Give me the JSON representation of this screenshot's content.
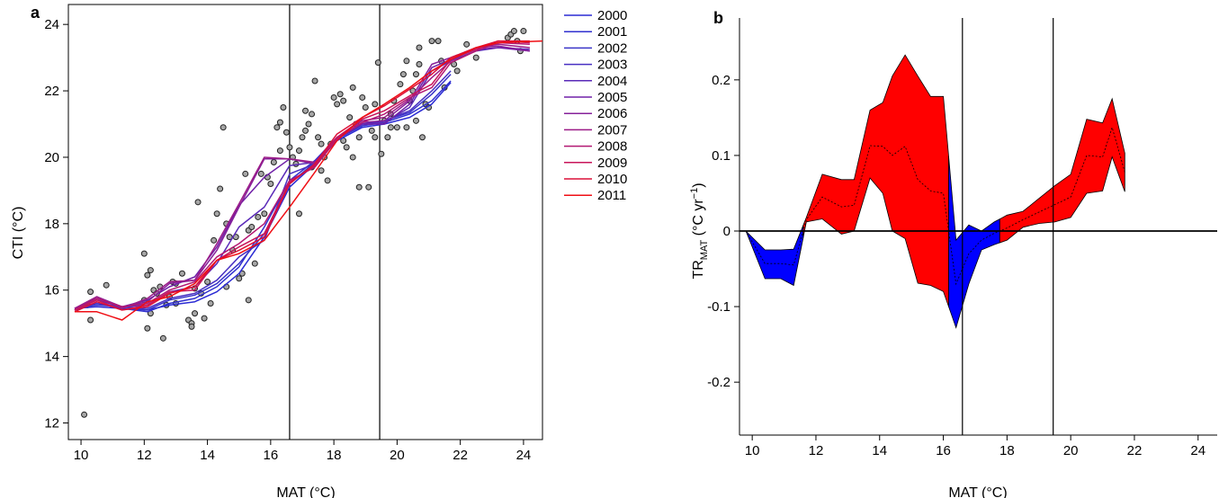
{
  "chart_data": [
    {
      "panel_label": "a",
      "type": "line",
      "xlabel": "MAT (°C)",
      "ylabel": "CTI (°C)",
      "xlim": [
        9.6,
        24.6
      ],
      "ylim": [
        11.5,
        24.6
      ],
      "xticks": [
        10,
        12,
        14,
        16,
        18,
        20,
        22,
        24
      ],
      "yticks": [
        12,
        14,
        16,
        18,
        20,
        22,
        24
      ],
      "vlines": [
        16.6,
        19.45
      ],
      "grid": false,
      "legend_position": "right",
      "series": [
        {
          "name": "2000",
          "color": "#2b2bd4",
          "x": [
            9.8,
            10.5,
            11.3,
            12.1,
            12.8,
            13.6,
            14.3,
            15.0,
            15.8,
            16.6,
            17.4,
            18.1,
            18.9,
            19.6,
            20.4,
            21.1,
            21.7
          ],
          "y": [
            15.45,
            15.5,
            15.45,
            15.4,
            15.55,
            15.65,
            15.95,
            16.5,
            17.6,
            19.1,
            19.8,
            20.5,
            20.9,
            21.0,
            21.2,
            21.6,
            22.25
          ]
        },
        {
          "name": "2001",
          "color": "#3030cf",
          "x": [
            9.8,
            10.5,
            11.3,
            12.1,
            12.8,
            13.6,
            14.3,
            15.0,
            15.8,
            16.6,
            17.4,
            18.1,
            18.9,
            19.6,
            20.4,
            21.1,
            21.7
          ],
          "y": [
            15.4,
            15.6,
            15.45,
            15.35,
            15.6,
            15.75,
            16.1,
            16.7,
            17.9,
            19.3,
            19.9,
            20.6,
            20.95,
            21.05,
            21.3,
            21.7,
            22.3
          ]
        },
        {
          "name": "2002",
          "color": "#3a34c8",
          "x": [
            9.8,
            10.5,
            11.3,
            12.1,
            12.8,
            13.6,
            14.3,
            15.0,
            15.8,
            16.6,
            17.4,
            18.1,
            18.9,
            19.6,
            20.4,
            21.1,
            21.7
          ],
          "y": [
            15.45,
            15.55,
            15.5,
            15.4,
            15.7,
            15.85,
            16.2,
            16.8,
            17.7,
            19.2,
            19.85,
            20.55,
            20.95,
            21.1,
            21.35,
            21.9,
            22.5
          ]
        },
        {
          "name": "2003",
          "color": "#4830c2",
          "x": [
            9.8,
            10.5,
            11.3,
            12.1,
            12.8,
            13.6,
            14.3,
            15.0,
            15.8,
            16.6,
            17.4,
            18.1,
            18.9,
            19.6,
            20.4,
            21.1,
            21.7
          ],
          "y": [
            15.45,
            15.6,
            15.5,
            15.45,
            15.75,
            15.9,
            16.3,
            17.0,
            17.5,
            19.5,
            19.8,
            20.6,
            21.0,
            21.1,
            21.4,
            22.0,
            22.6
          ]
        },
        {
          "name": "2004",
          "color": "#5a2ab8",
          "x": [
            9.8,
            10.5,
            11.3,
            12.1,
            12.8,
            13.6,
            14.3,
            15.0,
            15.8,
            16.6,
            17.4,
            18.1,
            18.9,
            19.6,
            20.4,
            21.1,
            21.7,
            22.5,
            23.2,
            24.2
          ],
          "y": [
            15.4,
            15.7,
            15.5,
            15.55,
            15.95,
            16.1,
            16.8,
            17.9,
            18.5,
            19.75,
            19.85,
            20.55,
            21.0,
            21.05,
            21.5,
            22.6,
            22.9,
            23.2,
            23.3,
            23.25
          ]
        },
        {
          "name": "2005",
          "color": "#7020a8",
          "x": [
            9.8,
            10.5,
            11.3,
            12.1,
            12.8,
            13.6,
            14.3,
            15.0,
            15.8,
            16.6,
            17.4,
            18.1,
            18.9,
            19.6,
            20.4,
            21.1,
            21.7,
            22.5,
            23.2,
            24.2
          ],
          "y": [
            15.45,
            15.75,
            15.5,
            15.7,
            16.1,
            16.4,
            17.3,
            18.55,
            19.4,
            19.95,
            19.8,
            20.6,
            21.0,
            21.0,
            21.6,
            22.7,
            22.95,
            23.25,
            23.3,
            23.2
          ]
        },
        {
          "name": "2006",
          "color": "#86209a",
          "x": [
            9.8,
            10.5,
            11.3,
            12.1,
            12.8,
            13.6,
            14.3,
            15.0,
            15.8,
            16.6,
            17.4,
            18.1,
            18.9,
            19.6,
            20.4,
            21.1,
            21.7,
            22.5,
            23.2,
            24.2
          ],
          "y": [
            15.4,
            15.8,
            15.5,
            15.65,
            16.2,
            16.3,
            17.2,
            18.5,
            19.95,
            19.95,
            19.8,
            20.55,
            21.05,
            21.1,
            21.7,
            22.8,
            23.0,
            23.3,
            23.35,
            23.2
          ]
        },
        {
          "name": "2007",
          "color": "#9c1c88",
          "x": [
            9.8,
            10.5,
            11.3,
            12.1,
            12.8,
            13.6,
            14.3,
            15.0,
            15.8,
            16.6,
            17.4,
            18.1,
            18.9,
            19.6,
            20.4,
            21.1,
            21.7,
            22.5,
            23.2,
            24.2
          ],
          "y": [
            15.45,
            15.8,
            15.45,
            15.75,
            16.25,
            16.3,
            17.4,
            18.6,
            20.0,
            19.95,
            19.85,
            20.6,
            21.1,
            21.2,
            21.75,
            22.4,
            22.9,
            23.3,
            23.4,
            23.3
          ]
        },
        {
          "name": "2008",
          "color": "#b31873",
          "x": [
            9.8,
            10.5,
            11.3,
            12.1,
            12.8,
            13.6,
            14.3,
            15.0,
            15.8,
            16.6,
            17.4,
            18.1,
            18.9,
            19.6,
            20.4,
            21.1,
            21.7,
            22.5,
            23.2,
            24.2
          ],
          "y": [
            15.4,
            15.75,
            15.5,
            15.6,
            16.0,
            16.25,
            17.0,
            17.4,
            18.0,
            19.3,
            19.7,
            20.55,
            21.05,
            21.3,
            21.8,
            22.1,
            22.85,
            23.2,
            23.45,
            23.4
          ]
        },
        {
          "name": "2009",
          "color": "#c8145a",
          "x": [
            9.8,
            10.5,
            11.3,
            12.1,
            12.8,
            13.6,
            14.3,
            15.0,
            15.8,
            16.6,
            17.4,
            18.1,
            18.9,
            19.6,
            20.4,
            21.1,
            21.7,
            22.5,
            23.2,
            24.2
          ],
          "y": [
            15.4,
            15.7,
            15.4,
            15.55,
            15.95,
            16.0,
            16.9,
            17.3,
            17.7,
            19.25,
            19.75,
            20.6,
            21.15,
            21.4,
            21.85,
            22.2,
            22.95,
            23.25,
            23.5,
            23.45
          ]
        },
        {
          "name": "2010",
          "color": "#dc1038",
          "x": [
            9.8,
            10.5,
            11.3,
            12.1,
            12.8,
            13.6,
            14.3,
            15.0,
            15.8,
            16.6,
            17.4,
            18.1,
            18.9,
            19.6,
            20.4,
            21.1,
            21.7,
            22.5,
            23.2,
            24.2
          ],
          "y": [
            15.35,
            15.65,
            15.4,
            15.5,
            15.9,
            16.1,
            16.9,
            17.2,
            17.6,
            19.2,
            19.8,
            20.7,
            21.2,
            21.55,
            22.05,
            22.5,
            23.0,
            23.3,
            23.5,
            23.5
          ]
        },
        {
          "name": "2011",
          "color": "#ef0e14",
          "x": [
            9.8,
            10.5,
            11.3,
            12.1,
            12.8,
            13.6,
            14.3,
            15.0,
            15.8,
            16.6,
            17.4,
            18.1,
            18.9,
            19.6,
            20.4,
            21.1,
            21.7,
            22.5,
            23.2,
            24.6
          ],
          "y": [
            15.35,
            15.35,
            15.1,
            15.65,
            15.8,
            16.2,
            16.9,
            17.1,
            17.5,
            18.5,
            19.55,
            20.5,
            21.2,
            21.6,
            22.1,
            22.6,
            22.95,
            23.3,
            23.45,
            23.5
          ]
        }
      ],
      "scatter": {
        "color": "#a6a6a6",
        "x": [
          10.1,
          10.2,
          10.3,
          10.3,
          10.8,
          12.0,
          12.0,
          12.1,
          12.1,
          12.2,
          12.3,
          12.4,
          12.5,
          12.6,
          12.7,
          12.8,
          12.9,
          13.0,
          13.2,
          13.4,
          13.5,
          13.5,
          13.6,
          13.6,
          13.7,
          13.8,
          13.9,
          14.0,
          14.1,
          14.2,
          14.3,
          14.4,
          14.5,
          14.6,
          14.7,
          14.8,
          14.9,
          15.0,
          15.1,
          15.2,
          15.3,
          15.4,
          15.5,
          15.6,
          15.7,
          15.8,
          15.9,
          16.0,
          16.1,
          16.2,
          16.3,
          16.4,
          16.5,
          16.6,
          16.7,
          16.8,
          16.9,
          17.0,
          17.1,
          17.2,
          17.3,
          17.4,
          17.5,
          17.6,
          17.7,
          17.8,
          17.9,
          18.0,
          18.1,
          18.2,
          18.3,
          18.4,
          18.5,
          18.6,
          18.7,
          18.8,
          18.9,
          19.0,
          19.1,
          19.2,
          19.3,
          19.4,
          19.5,
          19.6,
          19.7,
          19.8,
          19.9,
          20.0,
          20.1,
          20.2,
          20.3,
          20.4,
          20.5,
          20.6,
          20.7,
          20.8,
          20.9,
          21.0,
          21.1,
          21.3,
          21.5,
          21.8,
          22.2,
          22.5,
          23.5,
          23.6,
          23.7,
          23.8,
          23.9,
          24.0,
          12.2,
          13.0,
          14.6,
          15.3,
          16.9,
          17.3,
          17.6,
          18.3,
          18.8,
          19.8,
          20.3,
          20.6,
          21.4,
          16.3,
          17.1,
          18.6,
          19.3,
          20.7,
          21.9
        ],
        "y": [
          12.25,
          15.55,
          15.95,
          15.1,
          16.15,
          17.1,
          15.7,
          14.85,
          16.45,
          15.3,
          16.0,
          15.9,
          16.1,
          14.55,
          15.55,
          15.8,
          16.25,
          15.6,
          16.5,
          15.1,
          15.0,
          14.9,
          16.05,
          15.3,
          18.65,
          15.9,
          15.15,
          16.25,
          15.6,
          17.5,
          18.3,
          19.05,
          20.9,
          18.0,
          17.6,
          17.2,
          17.6,
          16.35,
          16.5,
          19.5,
          17.8,
          17.9,
          16.8,
          18.2,
          19.5,
          18.3,
          19.4,
          19.2,
          19.85,
          20.9,
          21.05,
          21.5,
          20.75,
          20.3,
          20.0,
          19.8,
          20.2,
          20.6,
          20.8,
          21.0,
          21.3,
          22.3,
          20.6,
          19.6,
          20.0,
          19.3,
          20.4,
          21.8,
          21.6,
          21.9,
          21.7,
          20.3,
          21.2,
          20.0,
          21.0,
          20.6,
          21.8,
          21.5,
          19.1,
          20.8,
          20.6,
          22.85,
          20.1,
          21.1,
          20.6,
          20.9,
          21.7,
          20.9,
          22.2,
          22.5,
          22.9,
          21.7,
          22.0,
          22.5,
          23.3,
          20.6,
          21.6,
          21.5,
          23.5,
          23.5,
          22.1,
          22.8,
          23.4,
          23.0,
          23.6,
          23.7,
          23.8,
          23.5,
          23.2,
          23.8,
          16.6,
          16.2,
          16.1,
          15.7,
          18.3,
          19.7,
          20.4,
          20.5,
          19.1,
          21.3,
          20.9,
          21.1,
          22.9,
          20.2,
          21.4,
          22.1,
          21.6,
          22.8,
          22.6
        ]
      }
    },
    {
      "panel_label": "b",
      "type": "area",
      "xlabel": "MAT (°C)",
      "ylabel_main": "TR",
      "ylabel_sub": "MAT",
      "ylabel_units_pre": " (°C yr",
      "ylabel_units_sup": "−1",
      "ylabel_units_post": ")",
      "xlim": [
        9.6,
        24.6
      ],
      "ylim": [
        -0.27,
        0.27
      ],
      "xticks": [
        10,
        12,
        14,
        16,
        18,
        20,
        22,
        24
      ],
      "yticks": [
        -0.2,
        -0.1,
        0,
        0.1,
        0.2
      ],
      "ytick_labels": [
        "-0.2",
        "-0.1",
        "0",
        "0.1",
        "0.2"
      ],
      "vlines": [
        16.6,
        19.45
      ],
      "hline": 0,
      "grid": false,
      "positive_color": "#ff0000",
      "negative_color": "#0000ff",
      "x": [
        9.8,
        10.4,
        10.9,
        11.3,
        11.7,
        12.2,
        12.8,
        13.2,
        13.7,
        14.1,
        14.4,
        14.8,
        15.2,
        15.6,
        16.0,
        16.4,
        16.8,
        17.2,
        17.6,
        18.0,
        18.5,
        19.0,
        19.5,
        20.0,
        20.5,
        21.0,
        21.3,
        21.7
      ],
      "upper": [
        0.0,
        -0.025,
        -0.025,
        -0.024,
        0.018,
        0.075,
        0.068,
        0.068,
        0.16,
        0.17,
        0.205,
        0.233,
        0.205,
        0.178,
        0.178,
        -0.012,
        0.008,
        0.0,
        0.012,
        0.021,
        0.026,
        0.043,
        0.06,
        0.075,
        0.148,
        0.143,
        0.175,
        0.103
      ],
      "lower": [
        0.0,
        -0.063,
        -0.063,
        -0.072,
        0.012,
        0.016,
        -0.004,
        0.0,
        0.07,
        0.05,
        0.0,
        -0.01,
        -0.069,
        -0.072,
        -0.08,
        -0.128,
        -0.07,
        -0.025,
        -0.018,
        -0.012,
        0.005,
        0.01,
        0.012,
        0.018,
        0.05,
        0.053,
        0.098,
        0.052
      ],
      "mean": [
        0.0,
        -0.043,
        -0.043,
        -0.045,
        0.015,
        0.045,
        0.032,
        0.034,
        0.113,
        0.112,
        0.1,
        0.112,
        0.068,
        0.053,
        0.05,
        -0.07,
        -0.03,
        -0.012,
        -0.003,
        0.004,
        0.015,
        0.025,
        0.035,
        0.045,
        0.1,
        0.098,
        0.137,
        0.078
      ]
    }
  ]
}
